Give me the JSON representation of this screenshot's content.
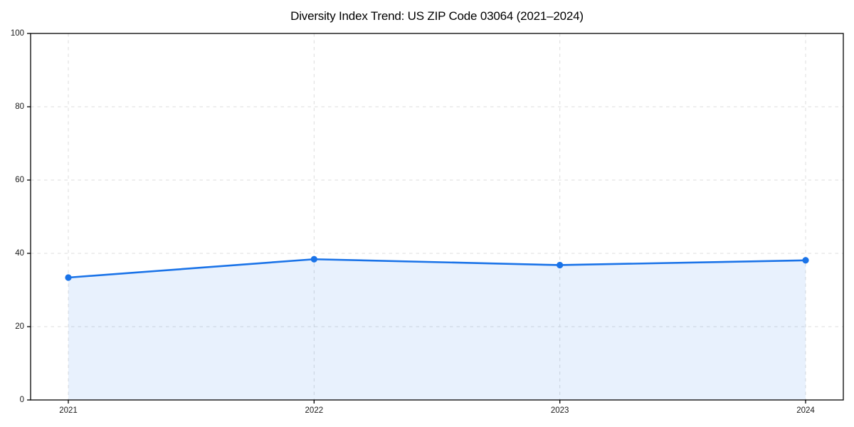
{
  "chart_data": {
    "type": "area",
    "title": "Diversity Index Trend: US ZIP Code 03064 (2021–2024)",
    "x": [
      "2021",
      "2022",
      "2023",
      "2024"
    ],
    "series": [
      {
        "name": "Diversity Index",
        "values": [
          33.4,
          38.4,
          36.8,
          38.1
        ]
      }
    ],
    "xlabel": "",
    "ylabel": "",
    "ylim": [
      0,
      100
    ],
    "yticks": [
      0,
      20,
      40,
      60,
      80,
      100
    ],
    "grid": "dashed-both",
    "legend": "none",
    "marker": "circle",
    "colors": {
      "line": "#1a73e8",
      "marker": "#1a73e8",
      "fill": "#1a73e8",
      "fill_opacity": 0.1,
      "grid": "#dcdcdc",
      "axis": "#000000",
      "tick_text": "#1a1a1a",
      "background": "#ffffff"
    }
  }
}
